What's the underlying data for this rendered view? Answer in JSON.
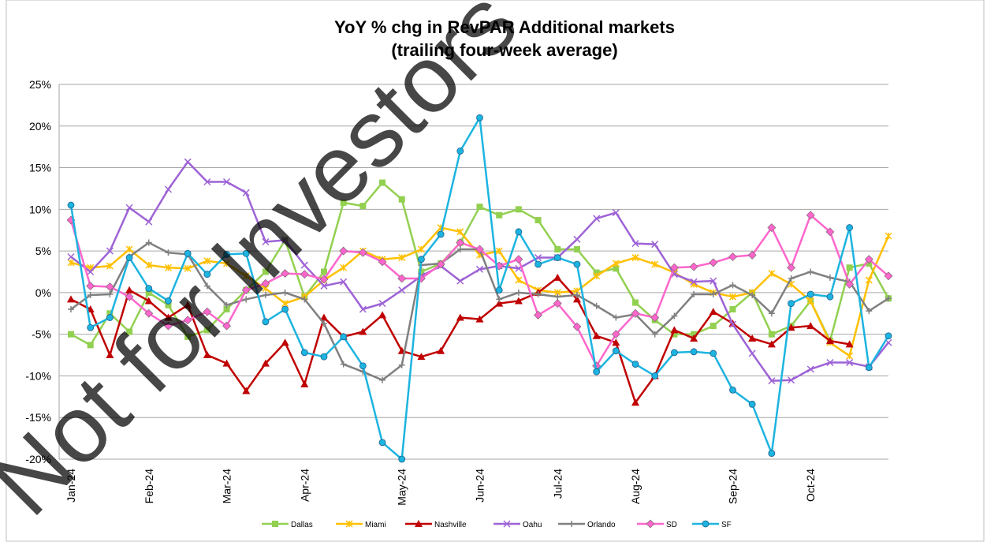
{
  "chart_data": {
    "type": "line",
    "title": "YoY % chg in RevPAR Additional markets",
    "subtitle": "(trailing four-week average)",
    "watermark": "Not for Investors",
    "categories": [
      "Jan-24",
      null,
      null,
      null,
      "Feb-24",
      null,
      null,
      null,
      "Mar-24",
      null,
      null,
      null,
      "Apr-24",
      null,
      null,
      null,
      null,
      "May-24",
      null,
      null,
      null,
      "Jun-24",
      null,
      null,
      null,
      "Jul-24",
      null,
      null,
      null,
      "Aug-24",
      null,
      null,
      null,
      null,
      "Sep-24",
      null,
      null,
      null,
      "Oct-24",
      null,
      null,
      null,
      null
    ],
    "ylim": [
      -20,
      25
    ],
    "yticks": [
      {
        "value": -20,
        "label": "-20%"
      },
      {
        "value": -15,
        "label": "-15%"
      },
      {
        "value": -10,
        "label": "-10%"
      },
      {
        "value": -5,
        "label": "-5%"
      },
      {
        "value": 0,
        "label": "0%"
      },
      {
        "value": 5,
        "label": "5%"
      },
      {
        "value": 10,
        "label": "10%"
      },
      {
        "value": 15,
        "label": "15%"
      },
      {
        "value": 20,
        "label": "20%"
      },
      {
        "value": 25,
        "label": "25%"
      }
    ],
    "grid": true,
    "legend": "bottom",
    "series": [
      {
        "name": "Dallas",
        "color": "#92d050",
        "marker": "square",
        "values": [
          -5,
          -6.3,
          -2.5,
          -4.7,
          0,
          -1.5,
          -5.3,
          -4.5,
          -2,
          0.3,
          2.5,
          6.3,
          -0.5,
          2.5,
          10.8,
          10.4,
          13.2,
          11.2,
          2.5,
          3.5,
          6,
          10.3,
          9.3,
          10,
          8.7,
          5.2,
          5.2,
          2.4,
          2.9,
          -1.2,
          -3.3,
          -5,
          -5,
          -4,
          -2,
          0,
          -5,
          -4,
          -1,
          -5.8,
          3,
          3.5,
          -0.7
        ]
      },
      {
        "name": "Miami",
        "color": "#ffc000",
        "marker": "star",
        "values": [
          3.6,
          3,
          3.2,
          5.2,
          3.3,
          3,
          2.9,
          3.8,
          3.5,
          2,
          0.5,
          -1.3,
          -0.5,
          1.5,
          3,
          5,
          4,
          4.2,
          5.2,
          7.8,
          7.3,
          4.5,
          5,
          1.5,
          0.3,
          0,
          0.2,
          2,
          3.5,
          4.2,
          3.4,
          2.4,
          1,
          0,
          -0.5,
          0,
          2.3,
          1,
          -1,
          -6,
          -7.6,
          1.5,
          6.8
        ]
      },
      {
        "name": "Nashville",
        "color": "#c00000",
        "marker": "triangle",
        "values": [
          -0.8,
          -2,
          -7.5,
          0.3,
          -1,
          -3,
          -1.5,
          -7.5,
          -8.5,
          -11.8,
          -8.5,
          -6,
          -11,
          -3,
          -5.3,
          -4.7,
          -2.7,
          -7,
          -7.7,
          -7,
          -3,
          -3.2,
          -1.3,
          -1,
          0,
          1.8,
          -0.8,
          -5.2,
          -6,
          -13.2,
          -10,
          -4.5,
          -5.5,
          -2.3,
          -3.7,
          -5.5,
          -6.2,
          -4.2,
          -4,
          -5.8,
          -6.2,
          null,
          null
        ]
      },
      {
        "name": "Oahu",
        "color": "#9e63d6",
        "marker": "x",
        "values": [
          4.3,
          2.5,
          5,
          10.2,
          8.5,
          12.4,
          15.7,
          13.3,
          13.3,
          12,
          6.1,
          6.3,
          3.3,
          0.8,
          1.3,
          -2,
          -1.3,
          0.3,
          2,
          3.2,
          1.4,
          2.8,
          3.2,
          2.9,
          4.2,
          4.2,
          6.4,
          8.9,
          9.6,
          5.9,
          5.8,
          2.2,
          1.3,
          1.4,
          -3.8,
          -7.3,
          -10.6,
          -10.5,
          -9.2,
          -8.4,
          -8.4,
          -8.9,
          -6
        ]
      },
      {
        "name": "Orlando",
        "color": "#808080",
        "marker": "plus",
        "values": [
          -2,
          -0.3,
          -0.2,
          4.3,
          6,
          4.8,
          4.6,
          0.8,
          -1.5,
          -0.8,
          -0.3,
          0,
          -0.8,
          -3.7,
          -8.6,
          -9.5,
          -10.5,
          -8.7,
          3.3,
          3.5,
          5.2,
          5.2,
          -0.8,
          0,
          -0.2,
          -0.5,
          -0.3,
          -1.6,
          -3,
          -2.6,
          -5,
          -2.8,
          -0.2,
          -0.2,
          0.9,
          -0.3,
          -2.5,
          1.7,
          2.5,
          1.8,
          1.3,
          -2.2,
          -0.7
        ]
      },
      {
        "name": "SD",
        "color": "#ff66cc",
        "marker": "diamond",
        "values": [
          8.7,
          0.8,
          0.7,
          -0.5,
          -2.5,
          -4,
          -3.3,
          -2.3,
          -4,
          0.3,
          1.1,
          2.3,
          2.2,
          1.6,
          5,
          4.8,
          3.7,
          1.7,
          1.7,
          3.4,
          6,
          5.2,
          3.2,
          4,
          -2.7,
          -1.3,
          -4.1,
          -8.8,
          -5,
          -2.5,
          -3,
          3,
          3.1,
          3.6,
          4.3,
          4.5,
          7.8,
          3,
          9.3,
          7.3,
          1,
          4,
          2
        ]
      },
      {
        "name": "SF",
        "color": "#1cb4e0",
        "marker": "circle",
        "values": [
          10.5,
          -4.2,
          -3,
          4.2,
          0.5,
          -1,
          4.7,
          2.2,
          4.6,
          4.7,
          -3.5,
          -2,
          -7.2,
          -7.7,
          -5.3,
          -8.8,
          -18,
          -20,
          4,
          7,
          17,
          21,
          0.3,
          7.3,
          3.4,
          4.2,
          3.4,
          -9.5,
          -7,
          -8.6,
          -10,
          -7.2,
          -7.1,
          -7.3,
          -11.7,
          -13.4,
          -19.3,
          -1.3,
          -0.2,
          -0.5,
          7.8,
          -9,
          -5.2
        ]
      }
    ]
  }
}
